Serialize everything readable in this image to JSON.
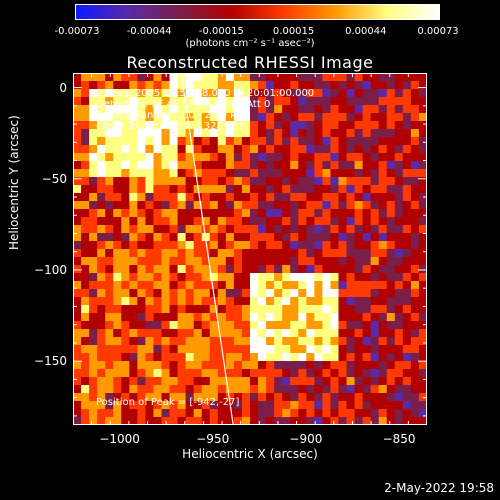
{
  "colorbar": {
    "tick_labels": [
      "-0.00073",
      "-0.00044",
      "-0.00015",
      "0.00015",
      "0.00044",
      "0.00073"
    ],
    "units": "(photons cm⁻² s⁻¹ asec⁻²)",
    "colors": [
      "#0a1aff",
      "#5a2aa8",
      "#7a1f4a",
      "#b10000",
      "#ff3a00",
      "#ff9a00",
      "#ffff80",
      "#ffffff"
    ]
  },
  "info": {
    "time": "23-Sep-2005 19:58:48.000 to 20:01:00.000",
    "detectors": "Detectors: 3F 4F 5F 6F 7F 8F, Att 0",
    "energy": "Energy Range: 12.0 - 25.0 keV",
    "clean": "Clean    Total counts: 3.32E+03",
    "peak": "Position of Peak = [-942,-27]"
  },
  "footer": {
    "date": "2-May-2022 19:58"
  },
  "chart_data": {
    "type": "heatmap",
    "title": "Reconstructed RHESSI Image",
    "xlabel": "Heliocentric X (arcsec)",
    "ylabel": "Heliocentric Y (arcsec)",
    "xlim": [
      -1025,
      -835
    ],
    "ylim": [
      -185,
      8
    ],
    "xticks": [
      -1000,
      -950,
      -900,
      -850
    ],
    "xtick_labels": [
      "−1000",
      "−950",
      "−900",
      "−850"
    ],
    "yticks": [
      0,
      -50,
      -100,
      -150
    ],
    "ytick_labels": [
      "0",
      "−50",
      "−100",
      "−150"
    ],
    "value_range": [
      -0.00073,
      0.00073
    ],
    "limb_line": {
      "x": [
        -967,
        -939
      ],
      "y": [
        8,
        -185
      ]
    },
    "peak_position": [
      -942,
      -27
    ],
    "hot_regions": [
      {
        "x": [
          -1010,
          -975
        ],
        "y": [
          -10,
          -40
        ],
        "level": "high"
      },
      {
        "x": [
          -965,
          -940
        ],
        "y": [
          0,
          -20
        ],
        "level": "high"
      },
      {
        "x": [
          -920,
          -890
        ],
        "y": [
          -110,
          -140
        ],
        "level": "high"
      },
      {
        "x": [
          -1000,
          -960
        ],
        "y": [
          -95,
          -110
        ],
        "level": "medium"
      },
      {
        "x": [
          -960,
          -925
        ],
        "y": [
          -130,
          -160
        ],
        "level": "medium"
      }
    ]
  }
}
